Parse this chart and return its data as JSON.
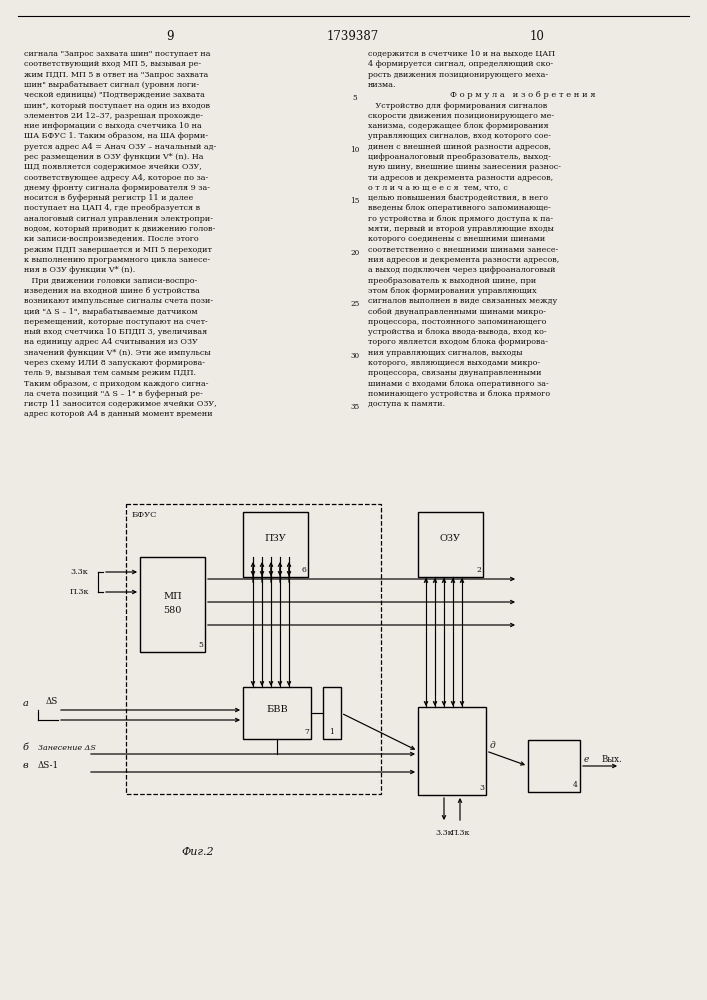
{
  "page_numbers": [
    "9",
    "1739387",
    "10"
  ],
  "left_text": [
    "сигнала \"Запрос захвата шин\" поступает на",
    "соответствующий вход МП 5, вызывая ре-",
    "жим ПДП. МП 5 в ответ на \"Запрос захвата",
    "шин\" вырабатывает сигнал (уровня логи-",
    "ческой единицы) \"Подтверждение захвата",
    "шин\", который поступает на один из входов",
    "элементов 2И 12–37, разрешая прохожде-",
    "ние информации с выхода счетчика 10 на",
    "ША БФУС 1. Таким образом, на ША форми-",
    "руется адрес А4 = Анач ОЗУ – начальный ад-",
    "рес размещения в ОЗУ функции V* (n). На",
    "ШД появляется содержимое ячейки ОЗУ,",
    "соответствующее адресу А4, которое по за-",
    "днему фронту сигнала формирователя 9 за-",
    "носится в буферный регистр 11 и далее",
    "поступает на ЦАП 4, где преобразуется в",
    "аналоговый сигнал управления электропри-",
    "водом, который приводит к движению голов-",
    "ки записи-воспроизведения. После этого",
    "режим ПДП завершается и МП 5 переходит",
    "к выполнению программного цикла занесе-",
    "ния в ОЗУ функции V* (n).",
    "   При движении головки записи-воспро-",
    "изведения на входной шине б устройства",
    "возникают импульсные сигналы счета пози-",
    "ций \"Δ S – 1\", вырабатываемые датчиком",
    "перемещений, которые поступают на счет-",
    "ный вход счетчика 10 БПДП 3, увеличивая",
    "на единицу адрес А4 считывания из ОЗУ",
    "значений функции V* (n). Эти же импульсы",
    "через схему ИЛИ 8 запускают формирова-",
    "тель 9, вызывая тем самым режим ПДП.",
    "Таким образом, с приходом каждого сигна-",
    "ла счета позиций \"Δ S – 1\" в буферный ре-",
    "гистр 11 заносится содержимое ячейки ОЗУ,",
    "адрес которой А4 в данный момент времени"
  ],
  "right_text": [
    "содержится в счетчике 10 и на выходе ЦАП",
    "4 формируется сигнал, определяющий ско-",
    "рость движения позиционирующего меха-",
    "низма.",
    "Ф о р м у л а   и з о б р е т е н и я",
    "   Устройство для формирования сигналов",
    "скорости движения позиционирующего ме-",
    "ханизма, содержащее блок формирования",
    "управляющих сигналов, вход которого сое-",
    "динен с внешней шиной разности адресов,",
    "цифроаналоговый преобразователь, выход-",
    "ную шину, внешние шины занесения разнос-",
    "ти адресов и декремента разности адресов,",
    "о т л и ч а ю щ е е с я  тем, что, с",
    "целью повышения быстродействия, в него",
    "введены блок оперативного запоминающе-",
    "го устройства и блок прямого доступа к па-",
    "мяти, первый и второй управляющие входы",
    "которого соединены с внешними шинами",
    "соответственно с внешними шинами занесе-",
    "ния адресов и декремента разности адресов,",
    "а выход подключен через цифроаналоговый",
    "преобразователь к выходной шине, при",
    "этом блок формирования управляющих",
    "сигналов выполнен в виде связанных между",
    "собой двунаправленными шинами микро-",
    "процессора, постоянного запоминающего",
    "устройства и блока ввода-вывода, вход ко-",
    "торого является входом блока формирова-",
    "ния управляющих сигналов, выходы",
    "которого, являющиеся выходами микро-",
    "процессора, связаны двунаправленными",
    "шинами с входами блока оперативного за-",
    "поминающего устройства и блока прямого",
    "доступа к памяти."
  ],
  "line_numbers": [
    "5",
    "10",
    "15",
    "20",
    "25",
    "30",
    "35"
  ],
  "fig_label": "Фиг.2",
  "background_color": "#eeebe4",
  "text_color": "#111111",
  "diagram": {
    "bfus_label": "БФУС",
    "mp_line1": "МП",
    "mp_line2": "580",
    "mp_num": "5",
    "pzu_label": "ПЗУ",
    "pzu_num": "6",
    "ozu_label": "ОЗУ",
    "ozu_num": "2",
    "gvv_label": "БВВ",
    "gvv_num": "7",
    "block1_num": "1",
    "block3_num": "3",
    "block4_num": "4",
    "label_33k_left": "3.3к",
    "label_p3k_left": "П.3к",
    "label_a": "а",
    "label_delta_s": "ΔS",
    "label_b": "б",
    "label_zanesen": "Занесение ΔS",
    "label_v": "в",
    "label_delta_s_minus1": "ΔS-1",
    "label_d": "д",
    "label_e": "е",
    "label_vykh": "Вых.",
    "label_33k_bot": "3.3к",
    "label_p3k_bot": "П.3к"
  }
}
